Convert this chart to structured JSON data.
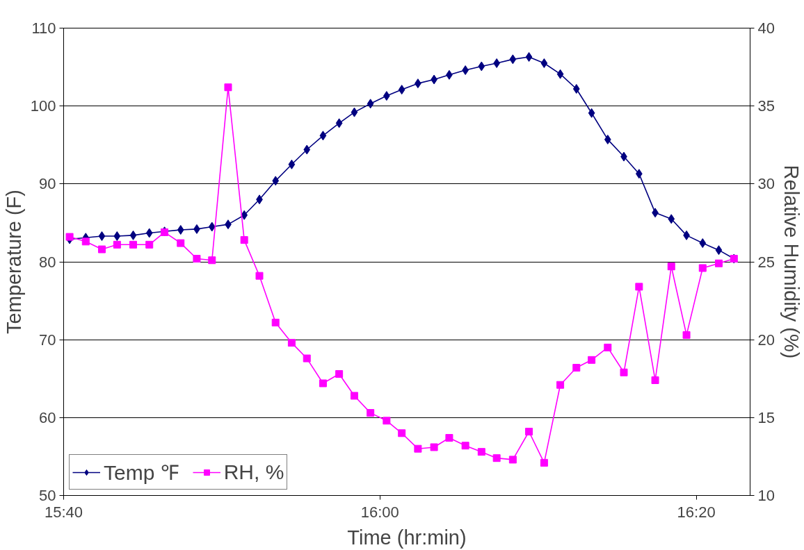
{
  "chart_data": {
    "type": "line",
    "xlabel": "Time (hr:min)",
    "ylabel": "Temperature (F)",
    "y2label": "Relative Humidity (%)",
    "x": [
      15.673,
      15.69,
      15.707,
      15.723,
      15.74,
      15.757,
      15.773,
      15.79,
      15.807,
      15.823,
      15.84,
      15.857,
      15.873,
      15.89,
      15.907,
      15.923,
      15.94,
      15.957,
      15.973,
      15.99,
      16.007,
      16.023,
      16.04,
      16.057,
      16.073,
      16.09,
      16.107,
      16.123,
      16.14,
      16.157,
      16.173,
      16.19,
      16.207,
      16.223,
      16.24,
      16.257,
      16.273,
      16.29,
      16.307,
      16.323,
      16.34,
      16.357,
      16.373
    ],
    "series": [
      {
        "name": "Temp ℉",
        "color": "#000080",
        "marker": "diamond",
        "values": [
          82.9,
          83.1,
          83.3,
          83.3,
          83.4,
          83.7,
          83.9,
          84.1,
          84.2,
          84.5,
          84.8,
          86.0,
          88.0,
          90.4,
          92.5,
          94.4,
          96.2,
          97.8,
          99.2,
          100.3,
          101.3,
          102.1,
          102.9,
          103.4,
          104.0,
          104.6,
          105.1,
          105.5,
          106.0,
          106.3,
          105.5,
          104.1,
          102.2,
          99.1,
          95.7,
          93.5,
          91.3,
          86.3,
          85.5,
          83.4,
          82.4,
          81.5,
          80.4
        ]
      },
      {
        "name": "RH, %",
        "color": "#ff00ff",
        "marker": "square",
        "axis": "y2",
        "values": [
          26.6,
          26.3,
          25.8,
          26.1,
          26.1,
          26.1,
          26.9,
          26.2,
          25.2,
          25.1,
          36.2,
          26.4,
          24.1,
          21.1,
          19.8,
          18.8,
          17.2,
          17.8,
          16.4,
          15.3,
          14.8,
          14.0,
          13.0,
          13.1,
          13.7,
          13.2,
          12.8,
          12.4,
          12.3,
          14.1,
          12.1,
          17.1,
          18.2,
          18.7,
          19.5,
          17.9,
          23.4,
          17.4,
          24.7,
          20.3,
          24.6,
          24.9,
          25.2
        ]
      }
    ],
    "xlim": [
      15.6667,
      16.39
    ],
    "xticks": [
      {
        "value": 15.6667,
        "label": "15:40"
      },
      {
        "value": 16,
        "label": "16:00"
      },
      {
        "value": 16.3333,
        "label": "16:20"
      }
    ],
    "ylim": [
      50,
      110
    ],
    "yticks": [
      50,
      60,
      70,
      80,
      90,
      100,
      110
    ],
    "y2lim": [
      10,
      40
    ],
    "y2ticks": [
      10,
      15,
      20,
      25,
      30,
      35,
      40
    ],
    "grid": "y",
    "legend": "bottom left",
    "line_style": "solid"
  }
}
